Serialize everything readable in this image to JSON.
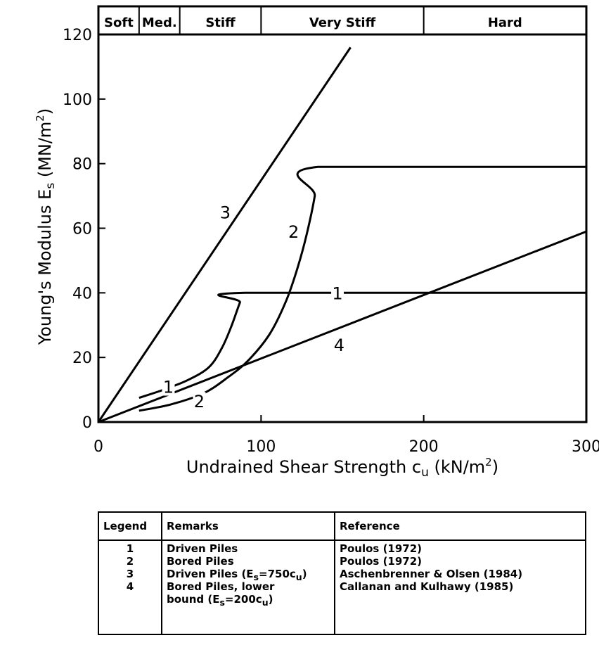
{
  "chart_data": {
    "type": "line",
    "xlabel": "Undrained Shear Strength c",
    "xlabel_sub": "u",
    "xlabel_unit": " (kN/m",
    "xlabel_sup": "2",
    "xlabel_close": ")",
    "ylabel": "Young's Modulus E",
    "ylabel_sub": "s",
    "ylabel_unit": " (MN/m",
    "ylabel_sup": "2",
    "ylabel_close": ")",
    "xlim": [
      0,
      300
    ],
    "ylim": [
      0,
      120
    ],
    "x_ticks": [
      0,
      100,
      200,
      300
    ],
    "x_tick_labels": [
      "0",
      "100",
      "200",
      "300"
    ],
    "y_ticks": [
      0,
      20,
      40,
      60,
      80,
      100,
      120
    ],
    "y_tick_labels": [
      "0",
      "20",
      "40",
      "60",
      "80",
      "100",
      "120"
    ],
    "grid": false,
    "consistency_bands": [
      {
        "label": "Soft",
        "from": 0,
        "to": 25
      },
      {
        "label": "Med.",
        "from": 25,
        "to": 50
      },
      {
        "label": "Stiff",
        "from": 50,
        "to": 100
      },
      {
        "label": "Very Stiff",
        "from": 100,
        "to": 200
      },
      {
        "label": "Hard",
        "from": 200,
        "to": 300
      }
    ],
    "series": [
      {
        "label": "1",
        "x": [
          25,
          40,
          55,
          68,
          76,
          82,
          87,
          90,
          300
        ],
        "y": [
          7.5,
          10,
          13,
          17,
          23,
          30,
          37,
          40,
          40
        ]
      },
      {
        "label": "2",
        "x": [
          25,
          45,
          65,
          80,
          92,
          105,
          115,
          122,
          128,
          133,
          135,
          300
        ],
        "y": [
          3.5,
          5.5,
          9,
          14,
          19,
          27,
          37,
          47,
          58,
          70,
          79,
          79
        ]
      },
      {
        "label": "3",
        "x": [
          0,
          155
        ],
        "y": [
          0,
          116
        ]
      },
      {
        "label": "4",
        "x": [
          0,
          300
        ],
        "y": [
          0,
          59
        ]
      }
    ],
    "curve_labels": [
      {
        "text": "1",
        "x": 147,
        "y": 40
      },
      {
        "text": "1",
        "x": 43,
        "y": 11
      },
      {
        "text": "2",
        "x": 120,
        "y": 59
      },
      {
        "text": "2",
        "x": 62,
        "y": 6.5
      },
      {
        "text": "3",
        "x": 78,
        "y": 65
      },
      {
        "text": "4",
        "x": 148,
        "y": 24
      }
    ]
  },
  "legend_table": {
    "headers": [
      "Legend",
      "Remarks",
      "Reference"
    ],
    "numbers": [
      "1",
      "2",
      "3",
      "4"
    ],
    "remarks": {
      "r1": "Driven Piles",
      "r2": "Bored Piles",
      "r3a": "Driven Piles (E",
      "r3sub": "s",
      "r3b": "=750c",
      "r3sub2": "u",
      "r3c": ")",
      "r4a": "Bored Piles, lower",
      "r4b": "bound (E",
      "r4sub": "s",
      "r4c": "=200c",
      "r4sub2": "u",
      "r4d": ")"
    },
    "references": [
      "Poulos (1972)",
      "Poulos (1972)",
      "Aschenbrenner & Olsen (1984)",
      "Callanan and Kulhawy (1985)"
    ]
  }
}
